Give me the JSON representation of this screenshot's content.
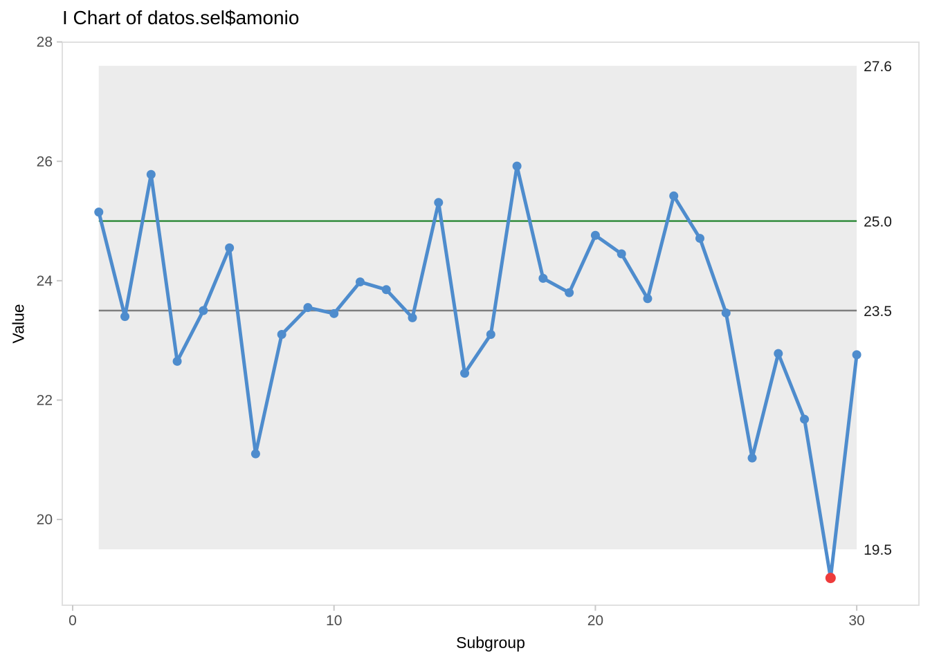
{
  "chart_data": {
    "type": "line",
    "subtype": "control-chart-individuals",
    "title": "I Chart of datos.sel$amonio",
    "xlabel": "Subgroup",
    "ylabel": "Value",
    "x": [
      1,
      2,
      3,
      4,
      5,
      6,
      7,
      8,
      9,
      10,
      11,
      12,
      13,
      14,
      15,
      16,
      17,
      18,
      19,
      20,
      21,
      22,
      23,
      24,
      25,
      26,
      27,
      28,
      29,
      30
    ],
    "values": [
      25.15,
      23.4,
      25.78,
      22.65,
      23.5,
      24.55,
      21.1,
      23.1,
      23.55,
      23.45,
      23.98,
      23.85,
      23.38,
      25.31,
      22.45,
      23.1,
      25.92,
      24.04,
      23.8,
      24.76,
      24.45,
      23.7,
      25.42,
      24.71,
      23.46,
      21.03,
      22.78,
      21.68,
      19.02,
      22.76
    ],
    "out_of_control_subgroups": [
      29
    ],
    "limits": {
      "ucl": {
        "value": 27.6,
        "label": "27.6"
      },
      "target": {
        "value": 25.0,
        "label": "25.0"
      },
      "center": {
        "value": 23.5,
        "label": "23.5"
      },
      "lcl": {
        "value": 19.5,
        "label": "19.5"
      }
    },
    "x_ticks": [
      0,
      10,
      20,
      30
    ],
    "y_ticks": [
      20,
      22,
      24,
      26,
      28
    ],
    "xlim": [
      -0.4,
      32.4
    ],
    "ylim": [
      18.6,
      28.1
    ],
    "grid": false,
    "legend": "none",
    "colors": {
      "series": "#4e8ccd",
      "signal_point": "#ee3b3b",
      "target_line": "#2a8735",
      "center_line": "#7f7f7f",
      "band_fill": "#ececec",
      "panel_border": "#e0e0e0",
      "tick_mark": "#c8c8c8",
      "tick_label": "#4d4d4d",
      "annotation": "#1a1a1a"
    }
  }
}
